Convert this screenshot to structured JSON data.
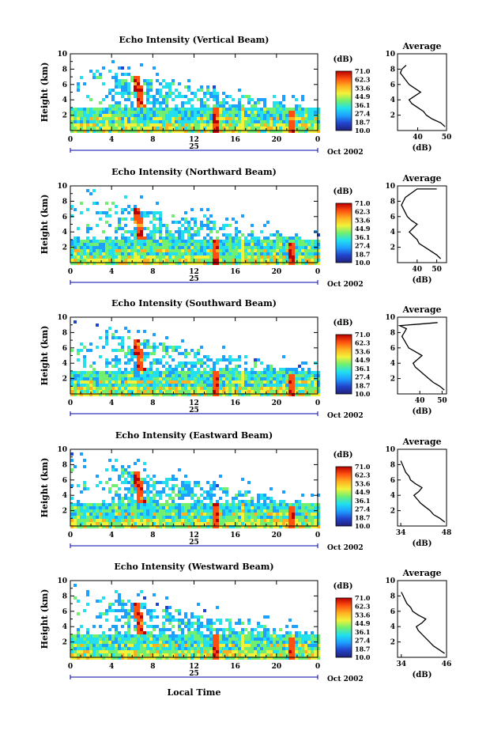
{
  "figure": {
    "xlabel": "Local Time",
    "date_label": "Oct 2002",
    "day_label": "25",
    "colorbar_unit": "(dB)",
    "colorbar_ticks": [
      "71.0",
      "62.3",
      "53.6",
      "44.9",
      "36.1",
      "27.4",
      "18.7",
      "10.0"
    ],
    "colorbar_range": [
      10.0,
      71.0
    ],
    "colormap": [
      "#20207a",
      "#2244cc",
      "#1ea0ff",
      "#22e0ee",
      "#70ef70",
      "#f2f23a",
      "#ffb020",
      "#ff5010",
      "#b80000"
    ],
    "average_title": "Average",
    "average_xlabel": "(dB)",
    "ylabel": "Height (km)"
  },
  "chart_data": [
    {
      "type": "heatmap",
      "title": "Echo Intensity (Vertical Beam)",
      "ylabel": "Height (km)",
      "xlabel": "",
      "xlim": [
        0,
        24
      ],
      "ylim": [
        0,
        10
      ],
      "xticks": [
        "0",
        "4",
        "8",
        "12",
        "16",
        "20",
        "0"
      ],
      "yticks": [
        "2",
        "4",
        "6",
        "8",
        "10"
      ],
      "average": {
        "type": "line",
        "xlabel": "(dB)",
        "xlim": [
          33,
          50
        ],
        "xticks": [
          "40",
          "50"
        ],
        "yticks": [
          "2",
          "4",
          "6",
          "8",
          "10"
        ],
        "x": [
          49.5,
          48,
          45,
          43,
          42,
          40,
          38,
          37,
          39,
          41,
          39,
          37,
          36,
          35,
          34,
          34.5,
          36
        ],
        "y": [
          0.5,
          1,
          1.5,
          2,
          2.5,
          3,
          3.5,
          4,
          4.5,
          5,
          5.5,
          6,
          6.5,
          7,
          7.5,
          8,
          8.5
        ]
      }
    },
    {
      "type": "heatmap",
      "title": "Echo Intensity (Northward Beam)",
      "ylabel": "Height (km)",
      "xlabel": "",
      "xlim": [
        0,
        24
      ],
      "ylim": [
        0,
        10
      ],
      "xticks": [
        "0",
        "4",
        "8",
        "12",
        "16",
        "20",
        "0"
      ],
      "yticks": [
        "2",
        "4",
        "6",
        "8",
        "10"
      ],
      "average": {
        "type": "line",
        "xlabel": "(dB)",
        "xlim": [
          30,
          55
        ],
        "xticks": [
          "40",
          "50"
        ],
        "yticks": [
          "2",
          "4",
          "6",
          "8",
          "10"
        ],
        "x": [
          52,
          50,
          47,
          44,
          41,
          40,
          38,
          36,
          38,
          40,
          37,
          35,
          34,
          33,
          32,
          33,
          34,
          40,
          50
        ],
        "y": [
          0.5,
          1,
          1.5,
          2,
          2.5,
          3,
          3.5,
          4,
          4.5,
          5,
          5.5,
          6,
          6.5,
          7,
          7.5,
          8,
          8.5,
          9.6,
          9.6
        ]
      }
    },
    {
      "type": "heatmap",
      "title": "Echo Intensity (Southward Beam)",
      "ylabel": "Height (km)",
      "xlabel": "",
      "xlim": [
        0,
        24
      ],
      "ylim": [
        0,
        10
      ],
      "xticks": [
        "0",
        "4",
        "8",
        "12",
        "16",
        "20",
        "0"
      ],
      "yticks": [
        "2",
        "4",
        "6",
        "8",
        "10"
      ],
      "average": {
        "type": "line",
        "xlabel": "(dB)",
        "xlim": [
          30,
          52
        ],
        "xticks": [
          "40",
          "50"
        ],
        "yticks": [
          "2",
          "4",
          "6",
          "8",
          "10"
        ],
        "x": [
          51,
          49,
          46,
          44,
          42,
          40,
          38,
          37,
          39,
          41,
          38,
          35,
          34,
          33,
          32,
          33,
          34,
          31,
          40,
          48
        ],
        "y": [
          0.5,
          1,
          1.5,
          2,
          2.5,
          3,
          3.5,
          4,
          4.5,
          5,
          5.5,
          6,
          6.5,
          7,
          7.5,
          8,
          8.5,
          8.9,
          9.1,
          9.3
        ]
      }
    },
    {
      "type": "heatmap",
      "title": "Echo Intensity (Eastward Beam)",
      "ylabel": "Height (km)",
      "xlabel": "",
      "xlim": [
        0,
        24
      ],
      "ylim": [
        0,
        10
      ],
      "xticks": [
        "0",
        "4",
        "8",
        "12",
        "16",
        "20",
        "0"
      ],
      "yticks": [
        "2",
        "4",
        "6",
        "8",
        "10"
      ],
      "average": {
        "type": "line",
        "xlabel": "(dB)",
        "xlim": [
          33,
          48
        ],
        "xticks": [
          "34",
          "48"
        ],
        "yticks": [
          "2",
          "4",
          "6",
          "8",
          "10"
        ],
        "x": [
          47.5,
          46,
          44,
          43,
          41.5,
          40,
          39,
          38,
          39.5,
          40.5,
          38.5,
          37,
          36.5,
          35.5,
          35,
          34.5,
          34
        ],
        "y": [
          0.5,
          1,
          1.5,
          2,
          2.5,
          3,
          3.5,
          4,
          4.5,
          5,
          5.5,
          6,
          6.5,
          7,
          7.5,
          8,
          8.5
        ]
      }
    },
    {
      "type": "heatmap",
      "title": "Echo Intensity (Westward Beam)",
      "ylabel": "Height (km)",
      "xlabel": "Local Time",
      "xlim": [
        0,
        24
      ],
      "ylim": [
        0,
        10
      ],
      "xticks": [
        "0",
        "4",
        "8",
        "12",
        "16",
        "20",
        "0"
      ],
      "yticks": [
        "2",
        "4",
        "6",
        "8",
        "10"
      ],
      "average": {
        "type": "line",
        "xlabel": "(dB)",
        "xlim": [
          33,
          46
        ],
        "xticks": [
          "34",
          "46"
        ],
        "yticks": [
          "2",
          "4",
          "6",
          "8",
          "10"
        ],
        "x": [
          45.5,
          44,
          42.5,
          41.5,
          40.5,
          39.5,
          38.5,
          38,
          39.5,
          40.5,
          38.5,
          37,
          36.5,
          35.5,
          35,
          34.5,
          34
        ],
        "y": [
          0.5,
          1,
          1.5,
          2,
          2.5,
          3,
          3.5,
          4,
          4.5,
          5,
          5.5,
          6,
          6.5,
          7,
          7.5,
          8,
          8.5
        ]
      }
    }
  ]
}
